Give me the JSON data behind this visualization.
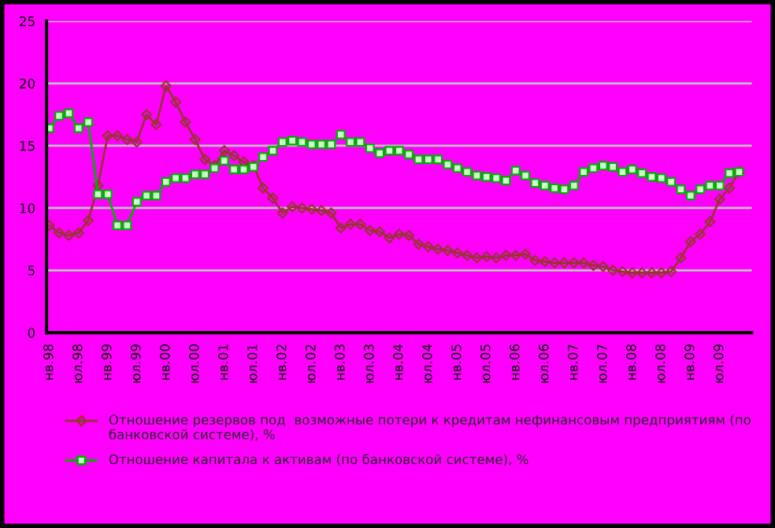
{
  "chart_data": {
    "type": "line",
    "categories": [
      "нв.98",
      null,
      null,
      "юл.98",
      null,
      null,
      "нв.99",
      null,
      null,
      "юл.99",
      null,
      null,
      "нв.00",
      null,
      null,
      "юл.00",
      null,
      null,
      "нв.01",
      null,
      null,
      "юл.01",
      null,
      null,
      "нв.02",
      null,
      null,
      "юл.02",
      null,
      null,
      "нв.03",
      null,
      null,
      "юл.03",
      null,
      null,
      "нв.04",
      null,
      null,
      "юл.04",
      null,
      null,
      "нв.05",
      null,
      null,
      "юл.05",
      null,
      null,
      "нв.06",
      null,
      null,
      "юл.06",
      null,
      null,
      "нв.07",
      null,
      null,
      "юл.07",
      null,
      null,
      "нв.08",
      null,
      null,
      "юл.08",
      null,
      null,
      "нв.09",
      null,
      null,
      "юл.09",
      null,
      null
    ],
    "series": [
      {
        "name": "Отношение резервов под  возможные потери к кредитам нефинансовым предприятиям (по банковской системе), %",
        "color": "#993333",
        "marker": "diamond",
        "values": [
          8.6,
          8.0,
          7.8,
          8.0,
          9.0,
          11.8,
          15.8,
          15.8,
          15.5,
          15.3,
          17.5,
          16.7,
          19.8,
          18.5,
          16.9,
          15.5,
          13.9,
          13.4,
          14.6,
          14.2,
          13.7,
          13.4,
          11.6,
          10.8,
          9.6,
          10.1,
          10.0,
          9.9,
          9.8,
          9.6,
          8.4,
          8.7,
          8.7,
          8.2,
          8.1,
          7.6,
          7.9,
          7.8,
          7.1,
          6.9,
          6.7,
          6.6,
          6.4,
          6.2,
          6.0,
          6.1,
          6.0,
          6.2,
          6.2,
          6.3,
          5.8,
          5.7,
          5.6,
          5.6,
          5.6,
          5.6,
          5.4,
          5.3,
          5.0,
          4.9,
          4.8,
          4.8,
          4.8,
          4.8,
          4.9,
          6.0,
          7.3,
          7.9,
          8.9,
          10.7,
          11.6,
          12.9
        ]
      },
      {
        "name": "Отношение капитала к активам (по банковской системе), %",
        "color": "#00b000",
        "marker": "square",
        "values": [
          16.4,
          17.4,
          17.6,
          16.4,
          16.9,
          11.1,
          11.1,
          8.6,
          8.6,
          10.5,
          11.0,
          11.0,
          12.1,
          12.4,
          12.4,
          12.7,
          12.7,
          13.2,
          13.8,
          13.1,
          13.1,
          13.3,
          14.1,
          14.6,
          15.3,
          15.4,
          15.3,
          15.1,
          15.1,
          15.1,
          15.9,
          15.3,
          15.3,
          14.8,
          14.4,
          14.6,
          14.6,
          14.3,
          13.9,
          13.9,
          13.9,
          13.5,
          13.2,
          12.9,
          12.6,
          12.5,
          12.4,
          12.2,
          13.0,
          12.6,
          12.0,
          11.8,
          11.6,
          11.5,
          11.8,
          12.9,
          13.2,
          13.4,
          13.3,
          12.9,
          13.1,
          12.8,
          12.5,
          12.4,
          12.1,
          11.5,
          11.0,
          11.5,
          11.8,
          11.8,
          12.8,
          12.9
        ]
      }
    ],
    "ylim": [
      0,
      25
    ],
    "yticks": [
      0,
      5,
      10,
      15,
      20,
      25
    ],
    "grid": "y",
    "legend": "bottom",
    "line_style": "solid"
  }
}
